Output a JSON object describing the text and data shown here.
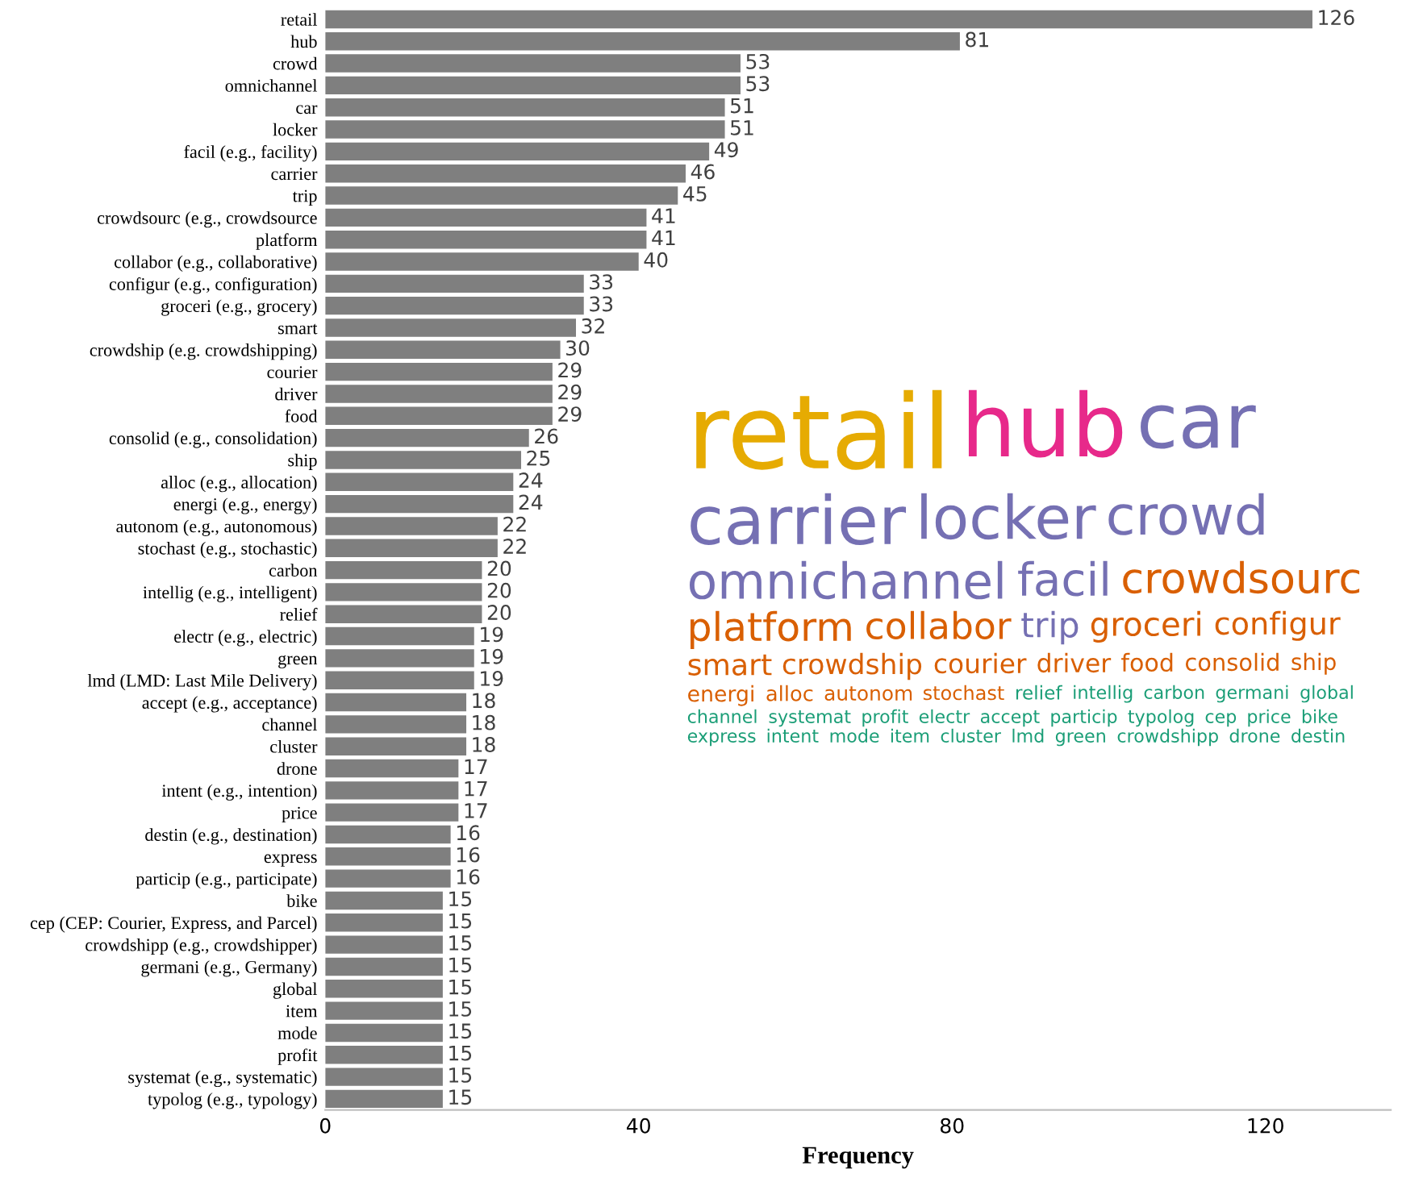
{
  "chart_data": [
    {
      "type": "bar",
      "orientation": "horizontal",
      "xlabel": "Frequency",
      "color": "#7f7f7f",
      "data_labels": true,
      "grid": false,
      "xlim": [
        0,
        136
      ],
      "xticks": [
        0,
        40,
        80,
        120
      ],
      "categories": [
        "retail",
        "hub",
        "crowd",
        "omnichannel",
        "car",
        "locker",
        "facil (e.g., facility)",
        "carrier",
        "trip",
        "crowdsourc (e.g., crowdsource",
        "platform",
        "collabor (e.g., collaborative)",
        "configur (e.g., configuration)",
        "groceri (e.g., grocery)",
        "smart",
        "crowdship (e.g. crowdshipping)",
        "courier",
        "driver",
        "food",
        "consolid (e.g., consolidation)",
        "ship",
        "alloc (e.g., allocation)",
        "energi (e.g., energy)",
        "autonom (e.g., autonomous)",
        "stochast (e.g., stochastic)",
        "carbon",
        "intellig (e.g., intelligent)",
        "relief",
        "electr (e.g., electric)",
        "green",
        "lmd (LMD: Last Mile Delivery)",
        "accept (e.g., acceptance)",
        "channel",
        "cluster",
        "drone",
        "intent (e.g., intention)",
        "price",
        "destin (e.g., destination)",
        "express",
        "particip (e.g., participate)",
        "bike",
        "cep (CEP: Courier, Express, and Parcel)",
        "crowdshipp (e.g., crowdshipper)",
        "germani (e.g., Germany)",
        "global",
        "item",
        "mode",
        "profit",
        "systemat (e.g., systematic)",
        "typolog (e.g., typology)"
      ],
      "values": [
        126,
        81,
        53,
        53,
        51,
        51,
        49,
        46,
        45,
        41,
        41,
        40,
        33,
        33,
        32,
        30,
        29,
        29,
        29,
        26,
        25,
        24,
        24,
        22,
        22,
        20,
        20,
        20,
        19,
        19,
        19,
        18,
        18,
        18,
        17,
        17,
        17,
        16,
        16,
        16,
        15,
        15,
        15,
        15,
        15,
        15,
        15,
        15,
        15,
        15
      ]
    },
    {
      "type": "other",
      "categories": [
        "retail",
        "hub",
        "car",
        "carrier",
        "locker",
        "crowd",
        "omnichannel",
        "facil",
        "crowdsourc",
        "platform",
        "collabor",
        "trip",
        "groceri",
        "configur",
        "smart",
        "crowdship",
        "courier",
        "driver",
        "food",
        "consolid",
        "ship",
        "energi",
        "alloc",
        "autonom",
        "stochast",
        "relief",
        "intellig",
        "carbon",
        "germani",
        "global",
        "channel",
        "systemat",
        "profit",
        "electr",
        "accept",
        "particip",
        "typolog",
        "cep",
        "price",
        "bike",
        "express",
        "intent",
        "mode",
        "item",
        "cluster",
        "lmd",
        "green",
        "crowdshipp",
        "drone",
        "destin"
      ],
      "colors": [
        "#e6ab02",
        "#e7298a",
        "#7570b3",
        "#7570b3",
        "#7570b3",
        "#7570b3",
        "#7570b3",
        "#7570b3",
        "#d95f02",
        "#d95f02",
        "#d95f02",
        "#7570b3",
        "#d95f02",
        "#d95f02",
        "#d95f02",
        "#d95f02",
        "#d95f02",
        "#d95f02",
        "#d95f02",
        "#d95f02",
        "#d95f02",
        "#d95f02",
        "#d95f02",
        "#d95f02",
        "#d95f02",
        "#1b9e77",
        "#1b9e77",
        "#1b9e77",
        "#1b9e77",
        "#1b9e77",
        "#1b9e77",
        "#1b9e77",
        "#1b9e77",
        "#1b9e77",
        "#1b9e77",
        "#1b9e77",
        "#1b9e77",
        "#1b9e77",
        "#1b9e77",
        "#1b9e77",
        "#1b9e77",
        "#1b9e77",
        "#1b9e77",
        "#1b9e77",
        "#1b9e77",
        "#1b9e77",
        "#1b9e77",
        "#1b9e77",
        "#1b9e77",
        "#1b9e77"
      ]
    }
  ]
}
